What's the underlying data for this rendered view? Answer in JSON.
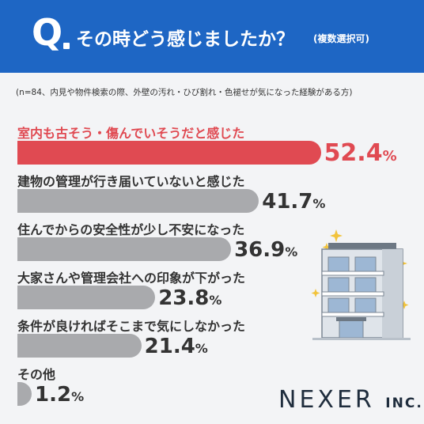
{
  "header": {
    "q_mark": "Q",
    "title": "その時どう感じましたか？",
    "subtitle": "(複数選択可)"
  },
  "note": "(n=84、内見や物件検索の際、外壁の汚れ・ひび割れ・色褪せが気になった経験がある方)",
  "colors": {
    "header_bg": "#1e66c4",
    "highlight": "#e04a52",
    "bar": "#a9aaad"
  },
  "chart_data": {
    "type": "bar",
    "orientation": "horizontal",
    "categories": [
      "室内も古そう・傷んでいそうだと感じた",
      "建物の管理が行き届いていないと感じた",
      "住んでからの安全性が少し不安になった",
      "大家さんや管理会社への印象が下がった",
      "条件が良ければそこまで気にしなかった",
      "その他"
    ],
    "values": [
      52.4,
      41.7,
      36.9,
      23.8,
      21.4,
      1.2
    ],
    "value_labels": [
      "52.4",
      "41.7",
      "36.9",
      "23.8",
      "21.4",
      "1.2"
    ],
    "unit": "%",
    "highlight_index": 0
  },
  "logo": {
    "main": "NEXER",
    "suffix": "INC."
  }
}
